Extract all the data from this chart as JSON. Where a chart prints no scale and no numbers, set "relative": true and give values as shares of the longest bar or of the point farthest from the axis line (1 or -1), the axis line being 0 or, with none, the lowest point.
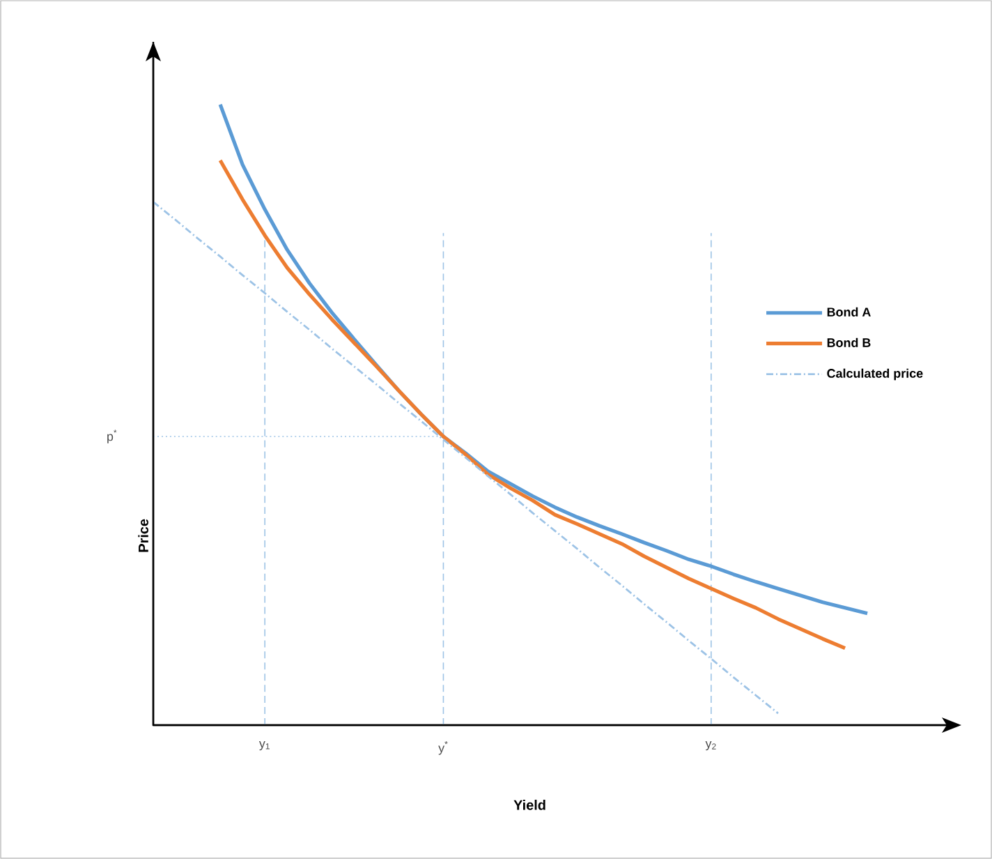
{
  "chart_data": {
    "type": "line",
    "relative": true,
    "xlabel": "Yield",
    "ylabel": "Price",
    "legend": "right",
    "categories": [
      null,
      null,
      null,
      null,
      null,
      "y$_{1}$",
      null,
      null,
      null,
      null,
      null,
      null,
      null,
      "y$^{*}$",
      null,
      null,
      null,
      null,
      null,
      null,
      null,
      null,
      null,
      null,
      null,
      "y$_{2}$",
      null,
      null,
      null,
      null,
      null,
      null,
      null,
      null,
      null,
      null
    ],
    "series": [
      {
        "name": "Bond A",
        "color": "#5b9bd5",
        "values": [
          null,
          null,
          null,
          1.0,
          0.903,
          0.831,
          0.766,
          0.712,
          0.665,
          0.622,
          0.58,
          0.539,
          0.501,
          0.465,
          0.438,
          0.409,
          0.389,
          0.369,
          0.351,
          0.335,
          0.321,
          0.308,
          0.294,
          0.281,
          0.267,
          0.256,
          0.243,
          0.231,
          0.22,
          0.209,
          0.198,
          0.189,
          0.18,
          null,
          null,
          null
        ]
      },
      {
        "name": "Bond B",
        "color": "#ed7d31",
        "values": [
          null,
          null,
          null,
          0.91,
          0.847,
          0.789,
          0.737,
          0.694,
          0.654,
          0.616,
          0.578,
          0.539,
          0.501,
          0.465,
          0.436,
          0.404,
          0.382,
          0.362,
          0.339,
          0.324,
          0.308,
          0.292,
          0.272,
          0.254,
          0.236,
          0.22,
          0.204,
          0.189,
          0.171,
          0.155,
          0.139,
          0.124,
          null,
          null,
          null,
          null
        ]
      },
      {
        "name": "Calculated price",
        "color": "#9dc3e6",
        "line_style": "dashdot",
        "values": [
          0.843,
          0.814,
          0.784,
          0.755,
          0.725,
          0.696,
          0.666,
          0.637,
          0.607,
          0.578,
          0.549,
          0.519,
          0.49,
          0.46,
          0.431,
          0.401,
          0.372,
          0.342,
          0.313,
          0.284,
          0.254,
          0.225,
          0.195,
          0.166,
          0.136,
          0.107,
          0.077,
          0.048,
          0.019,
          null,
          null,
          null,
          null,
          null,
          null,
          null
        ]
      }
    ],
    "ref_lines": [
      {
        "axis": "x",
        "value": "y$_{1}$",
        "color": "#9dc3e6",
        "line_style": "dashed"
      },
      {
        "axis": "x",
        "value": "y$^{*}$",
        "color": "#9dc3e6",
        "line_style": "dashed"
      },
      {
        "axis": "x",
        "value": "y$_{2}$",
        "color": "#9dc3e6",
        "line_style": "dashed"
      },
      {
        "axis": "y",
        "value": 0.465,
        "label": "p$^{*}$",
        "color": "#9dc3e6",
        "line_style": "dotted"
      }
    ]
  }
}
